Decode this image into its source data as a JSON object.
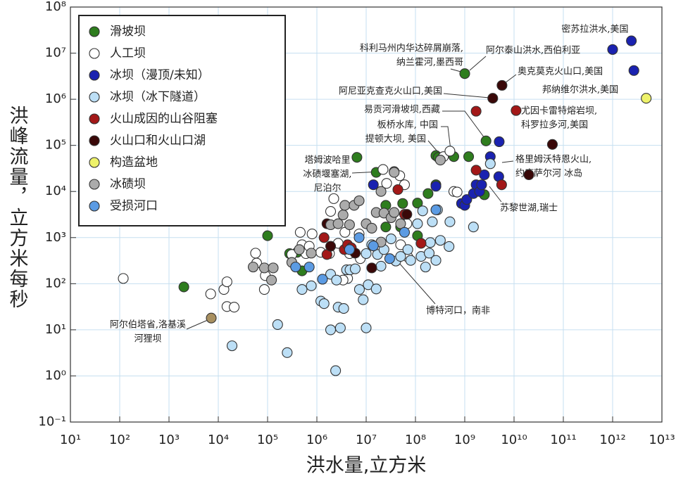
{
  "chart_data": {
    "type": "scatter",
    "xlabel": "洪水量,立方米",
    "ylabel": "洪峰流量，立方米每秒",
    "xscale": "log",
    "yscale": "log",
    "xlim": [
      10,
      10000000000000
    ],
    "ylim": [
      0.1,
      100000000
    ],
    "xticks": [
      {
        "value": 10,
        "label": "10¹"
      },
      {
        "value": 100,
        "label": "10²"
      },
      {
        "value": 1000,
        "label": "10³"
      },
      {
        "value": 10000,
        "label": "10⁴"
      },
      {
        "value": 100000,
        "label": "10⁵"
      },
      {
        "value": 1000000,
        "label": "10⁶"
      },
      {
        "value": 10000000,
        "label": "10⁷"
      },
      {
        "value": 100000000,
        "label": "10⁸"
      },
      {
        "value": 1000000000,
        "label": "10⁹"
      },
      {
        "value": 10000000000,
        "label": "10¹⁰"
      },
      {
        "value": 100000000000,
        "label": "10¹¹"
      },
      {
        "value": 1000000000000,
        "label": "10¹²"
      },
      {
        "value": 10000000000000,
        "label": "10¹³"
      }
    ],
    "yticks": [
      {
        "value": 0.1,
        "label": "10⁻¹"
      },
      {
        "value": 1,
        "label": "10⁰"
      },
      {
        "value": 10,
        "label": "10¹"
      },
      {
        "value": 100,
        "label": "10²"
      },
      {
        "value": 1000,
        "label": "10³"
      },
      {
        "value": 10000,
        "label": "10⁴"
      },
      {
        "value": 100000,
        "label": "10⁵"
      },
      {
        "value": 1000000,
        "label": "10⁶"
      },
      {
        "value": 10000000,
        "label": "10⁷"
      },
      {
        "value": 100000000,
        "label": "10⁸"
      }
    ],
    "grid": true,
    "legend": "upper left",
    "series": [
      {
        "name": "滑坡坝",
        "color": "#2e7d1e",
        "x": [
          2000,
          100000,
          280000,
          400000,
          500000,
          6500000,
          16000000,
          25000000,
          25000000,
          50000000,
          55000000,
          110000000,
          110000000,
          180000000,
          260000000,
          260000000,
          290000000,
          600000000,
          1000000000,
          1200000000,
          2700000000,
          2500000000
        ],
        "values": [
          85,
          1100,
          450,
          480,
          190,
          55000,
          26000,
          5000,
          1700,
          1700,
          5500,
          1100,
          5600,
          9000,
          14000,
          60000,
          55000,
          57000,
          3600000,
          57000,
          125000,
          8500
        ]
      },
      {
        "name": "人工坝",
        "color": "#ffffff",
        "x": [
          118,
          7000,
          13000,
          15000,
          15000,
          21000,
          57000,
          60000,
          86000,
          90000,
          310000,
          460000,
          500000,
          600000,
          700000,
          800000,
          1200000,
          1800000,
          1900000,
          2200000,
          2700000,
          3700000,
          4600000,
          4200000,
          3400000,
          7200000,
          7600000,
          22000000,
          26000000,
          37000000,
          48000000,
          60000000,
          67000000,
          50000000,
          70000000,
          370000000,
          500000000,
          600000000,
          700000000
        ],
        "values": [
          130,
          60,
          75,
          110,
          32,
          31,
          460,
          280,
          75,
          150,
          430,
          1300,
          700,
          450,
          650,
          1200,
          480,
          450,
          3700,
          7000,
          750,
          1300,
          450,
          130,
          120,
          1200,
          350,
          30000,
          15000,
          27000,
          22000,
          14000,
          2000,
          700,
          380,
          57000,
          75000,
          10000,
          9700
        ]
      },
      {
        "name": "冰坝（漫顶/未知）",
        "color": "#1a22b0",
        "x": [
          14000000,
          260000000,
          860000000,
          1000000000,
          1100000000,
          1500000000,
          1700000000,
          2000000000,
          2200000000,
          2500000000,
          3300000000,
          5000000000,
          4900000000,
          1000000000000,
          2400000000000,
          2700000000000
        ],
        "values": [
          14000,
          13000,
          5500,
          5000,
          6700,
          9000,
          14000,
          10000,
          14000,
          23000,
          57000,
          120000,
          21000,
          12000000,
          18500000,
          4200000
        ]
      },
      {
        "name": "冰坝（冰下隧道）",
        "color": "#bcdff6",
        "x": [
          19000,
          160000,
          250000,
          2400000,
          500000,
          770000,
          1200000,
          1400000,
          1900000,
          3000000,
          2700000,
          3500000,
          1900000,
          2500000,
          4000000,
          4700000,
          6000000,
          7300000,
          8700000,
          10000000,
          11000000,
          16000000,
          20000000,
          10000000,
          13000000,
          17000000,
          23000000,
          32000000,
          40000000,
          50000000,
          70000000,
          80000000,
          130000000,
          160000000,
          190000000,
          200000000,
          260000000,
          320000000,
          220000000,
          280000000,
          500000000,
          480000000,
          1500000000,
          3300000000,
          110000000,
          140000000
        ],
        "values": [
          4.5,
          13,
          3.2,
          1.3,
          75,
          90,
          42,
          37,
          10,
          11,
          31,
          29,
          160,
          120,
          200,
          200,
          210,
          75,
          45,
          11,
          95,
          77,
          240,
          450,
          700,
          430,
          550,
          940,
          310,
          390,
          550,
          320,
          390,
          230,
          460,
          780,
          320,
          870,
          2200,
          4000,
          2200,
          640,
          1700,
          40000,
          2000,
          3800
        ]
      },
      {
        "name": "火山成因的山谷阻塞",
        "color": "#a31818",
        "x": [
          1400000,
          1600000,
          3600000,
          4200000,
          5000000,
          44000000,
          60000000,
          130000000,
          1700000000,
          1700000000,
          5600000000,
          11000000000
        ],
        "values": [
          1000,
          430,
          550,
          700,
          600,
          11000,
          3200,
          750,
          550000,
          29000,
          14000,
          570000
        ]
      },
      {
        "name": "火山口和火山口湖",
        "color": "#3a0808",
        "x": [
          1600000,
          1900000,
          6000000,
          13000000,
          67000000,
          3700000000,
          5700000000,
          60000000000,
          20000000000
        ],
        "values": [
          2000,
          650,
          460,
          220,
          3200,
          1050000,
          2000000,
          105000,
          23000
        ]
      },
      {
        "name": "构造盆地",
        "color": "#eef26a",
        "x": [
          4800000000000
        ],
        "values": [
          1050000
        ]
      },
      {
        "name": "冰碛坝",
        "color": "#ababab",
        "x": [
          51000,
          86000,
          120000,
          130000,
          310000,
          440000,
          770000,
          1900000,
          2700000,
          3400000,
          3700000,
          4600000,
          5700000,
          7200000,
          10000000,
          13000000,
          16000000,
          20000000,
          23000000,
          32000000,
          37000000,
          37000000,
          50000000,
          20000000,
          320000000
        ],
        "values": [
          230,
          220,
          120,
          220,
          290,
          550,
          460,
          1900,
          2000,
          3100,
          5000,
          1900,
          5000,
          6300,
          2000,
          1600,
          3500,
          10000,
          3400,
          2700,
          3500,
          26000,
          2000,
          800,
          48000
        ]
      },
      {
        "name": "受损河口",
        "color": "#5b9be3",
        "x": [
          370000,
          700000,
          1300000,
          4600000,
          7200000,
          14000000,
          30000000,
          60000000,
          260000000
        ],
        "values": [
          230,
          230,
          125,
          550,
          1000,
          660,
          350,
          1300,
          4000
        ]
      }
    ],
    "highlight_point": {
      "x": 7200,
      "y": 18,
      "color": "#a89060"
    },
    "annotations": [
      {
        "lines": [
          "密苏拉洪水,美国"
        ]
      },
      {
        "lines": [
          "科利马州内华达碎屑崩落,",
          "纳兰霍河,墨西哥"
        ]
      },
      {
        "lines": [
          "阿尔泰山洪水,西伯利亚"
        ]
      },
      {
        "lines": [
          "奥克莫克火山口,美国"
        ]
      },
      {
        "lines": [
          "邦纳维尔洪水,美国"
        ]
      },
      {
        "lines": [
          "阿尼亚克查克火山口,美国"
        ]
      },
      {
        "lines": [
          "易贡河滑坡坝,西藏"
        ]
      },
      {
        "lines": [
          "尤因卡雷特熔岩坝,",
          "科罗拉多河,美国"
        ]
      },
      {
        "lines": [
          "板桥水库, 中国"
        ]
      },
      {
        "lines": [
          "提顿大坝, 美国"
        ]
      },
      {
        "lines": [
          "塔姆波哈里",
          "冰碛堰塞湖,",
          "尼泊尔"
        ]
      },
      {
        "lines": [
          "格里姆沃特恩火山,",
          "约库萨尔河 冰岛"
        ]
      },
      {
        "lines": [
          "苏黎世湖,瑞士"
        ]
      },
      {
        "lines": [
          "博特河口，南非"
        ]
      },
      {
        "lines": [
          "阿尔伯塔省,洛基溪",
          "河狸坝"
        ]
      }
    ]
  }
}
